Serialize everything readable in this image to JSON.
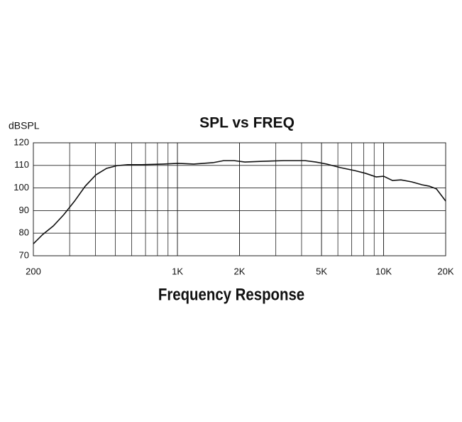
{
  "chart_data": {
    "type": "line",
    "title": "SPL vs FREQ",
    "y_label": "dBSPL",
    "caption": "Frequency Response",
    "x_scale": "log",
    "grid": true,
    "xlim": [
      200,
      20000
    ],
    "xticks": [
      200,
      {
        "value": 1000,
        "label": "1K"
      },
      {
        "value": 2000,
        "label": "2K"
      },
      {
        "value": 5000,
        "label": "5K"
      },
      {
        "value": 10000,
        "label": "10K"
      },
      {
        "value": 20000,
        "label": "20K"
      }
    ],
    "ylim": [
      70,
      120
    ],
    "yticks": [
      70,
      80,
      90,
      100,
      110,
      120
    ],
    "x": [
      200,
      222,
      250,
      281,
      317,
      357,
      402,
      453,
      510,
      574,
      672,
      854,
      1000,
      1200,
      1486,
      1674,
      1884,
      2122,
      2588,
      3281,
      4160,
      4689,
      5285,
      6187,
      7244,
      8166,
      9200,
      10000,
      11040,
      12140,
      13680,
      15380,
      16660,
      18040,
      20000
    ],
    "series": [
      {
        "color": "#111111",
        "values": [
          75.3,
          79.4,
          83.2,
          88.2,
          94.2,
          100.8,
          105.8,
          108.7,
          109.9,
          110.3,
          110.3,
          110.6,
          110.9,
          110.6,
          111.2,
          112.1,
          112.1,
          111.5,
          111.8,
          112.1,
          112.1,
          111.5,
          110.6,
          109.0,
          107.7,
          106.5,
          104.9,
          105.2,
          103.3,
          103.6,
          102.7,
          101.4,
          100.8,
          99.6,
          94.2
        ]
      }
    ]
  }
}
